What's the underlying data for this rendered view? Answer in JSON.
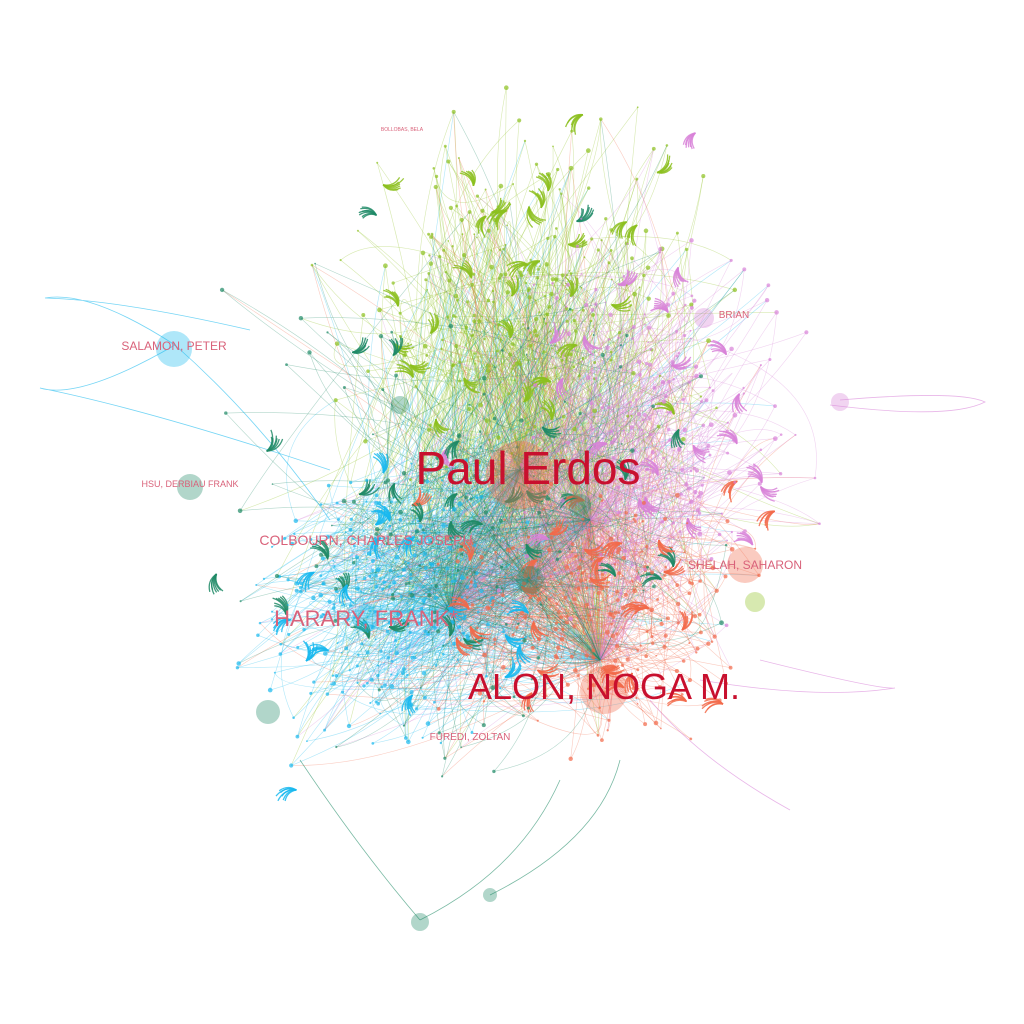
{
  "graph": {
    "colors": {
      "green": "#8cc01e",
      "teal": "#1f8a66",
      "cyan": "#19b9ee",
      "orange": "#f26a4a",
      "violet": "#d883d8",
      "label_major": "#c8102e",
      "label_minor": "#d9627a"
    },
    "labels": {
      "paul_erdos": "Paul Erdos",
      "alon_noga": "ALON, NOGA M.",
      "harary_frank": "HARARY, FRANK*",
      "colbourn": "COLBOURN, CHARLES JOSEPH",
      "salamon_peter": "SALAMON, PETER",
      "hsu_frank": "HSU, DERBIAU FRANK",
      "shelah_saharon": "SHELAH, SAHARON",
      "furedi_zoltan": "FUREDI, ZOLTAN",
      "brian": "BRIAN",
      "tiny_top": "BOLLOBAS, BELA"
    }
  }
}
